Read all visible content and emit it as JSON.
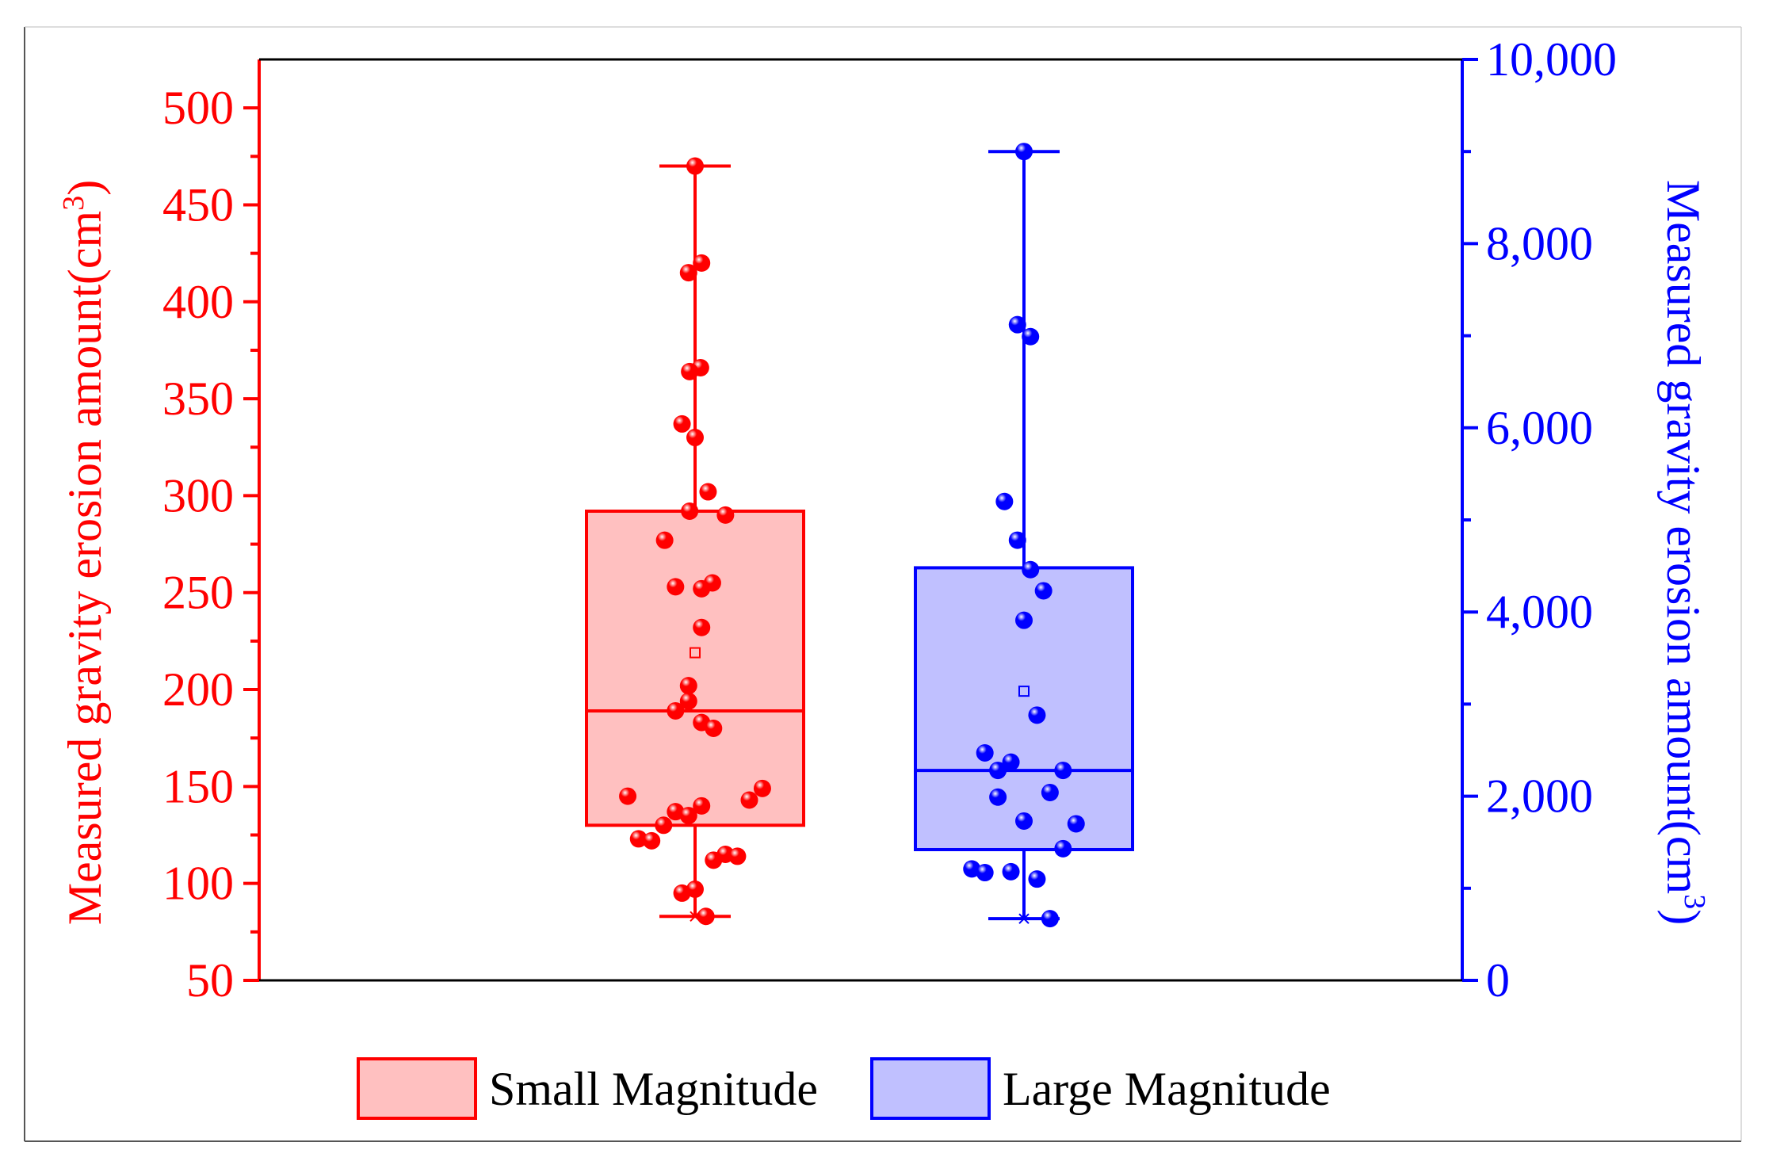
{
  "chart_data": {
    "type": "box",
    "left_axis": {
      "label_main": "Measured gravity erosion amount(cm",
      "label_sup": "3",
      "label_end": ")",
      "range": [
        50,
        525
      ],
      "ticks": [
        50,
        100,
        150,
        200,
        250,
        300,
        350,
        400,
        450,
        500
      ],
      "tick_labels": [
        "50",
        "100",
        "150",
        "200",
        "250",
        "300",
        "350",
        "400",
        "450",
        "500"
      ],
      "color": "#ff0000"
    },
    "right_axis": {
      "label_main": "Measured gravity erosion amount(cm",
      "label_sup": "3",
      "label_end": ")",
      "range": [
        0,
        10000
      ],
      "ticks": [
        0,
        2000,
        4000,
        6000,
        8000,
        10000
      ],
      "tick_labels": [
        "0",
        "2,000",
        "4,000",
        "6,000",
        "8,000",
        "10,000"
      ],
      "color": "#0000ff"
    },
    "series": [
      {
        "name": "Small Magnitude",
        "axis": "left",
        "color": "#ff0000",
        "fill": "#ffc0c0",
        "whisker_low": 83,
        "q1": 130,
        "median": 189,
        "q3": 292,
        "whisker_high": 470,
        "mean": 219,
        "points": [
          {
            "v": 470,
            "j": 0
          },
          {
            "v": 420,
            "j": 0.06
          },
          {
            "v": 415,
            "j": -0.06
          },
          {
            "v": 366,
            "j": 0.05
          },
          {
            "v": 364,
            "j": -0.05
          },
          {
            "v": 337,
            "j": -0.12
          },
          {
            "v": 330,
            "j": 0
          },
          {
            "v": 302,
            "j": 0.12
          },
          {
            "v": 292,
            "j": -0.05
          },
          {
            "v": 290,
            "j": 0.28
          },
          {
            "v": 277,
            "j": -0.28
          },
          {
            "v": 255,
            "j": 0.16
          },
          {
            "v": 253,
            "j": -0.18
          },
          {
            "v": 252,
            "j": 0.06
          },
          {
            "v": 232,
            "j": 0.06
          },
          {
            "v": 202,
            "j": -0.06
          },
          {
            "v": 194,
            "j": -0.06
          },
          {
            "v": 189,
            "j": -0.18
          },
          {
            "v": 183,
            "j": 0.06
          },
          {
            "v": 180,
            "j": 0.17
          },
          {
            "v": 149,
            "j": 0.62
          },
          {
            "v": 145,
            "j": -0.62
          },
          {
            "v": 143,
            "j": 0.5
          },
          {
            "v": 140,
            "j": 0.06
          },
          {
            "v": 137,
            "j": -0.18
          },
          {
            "v": 135,
            "j": -0.06
          },
          {
            "v": 130,
            "j": -0.29
          },
          {
            "v": 123,
            "j": -0.52
          },
          {
            "v": 122,
            "j": -0.4
          },
          {
            "v": 115,
            "j": 0.28
          },
          {
            "v": 114,
            "j": 0.39
          },
          {
            "v": 112,
            "j": 0.17
          },
          {
            "v": 97,
            "j": 0
          },
          {
            "v": 95,
            "j": -0.12
          },
          {
            "v": 83,
            "j": 0.1
          }
        ]
      },
      {
        "name": "Large Magnitude",
        "axis": "right",
        "color": "#0000ff",
        "fill": "#c0c0ff",
        "whisker_low": 670,
        "q1": 1420,
        "median": 2280,
        "q3": 4480,
        "whisker_high": 9000,
        "mean": 3140,
        "points": [
          {
            "v": 9000,
            "j": 0
          },
          {
            "v": 7120,
            "j": -0.06
          },
          {
            "v": 6990,
            "j": 0.06
          },
          {
            "v": 5200,
            "j": -0.18
          },
          {
            "v": 4780,
            "j": -0.06
          },
          {
            "v": 4460,
            "j": 0.06
          },
          {
            "v": 4230,
            "j": 0.18
          },
          {
            "v": 3910,
            "j": 0
          },
          {
            "v": 2880,
            "j": 0.12
          },
          {
            "v": 2470,
            "j": -0.36
          },
          {
            "v": 2370,
            "j": -0.12
          },
          {
            "v": 2280,
            "j": -0.24
          },
          {
            "v": 2280,
            "j": 0.36
          },
          {
            "v": 2040,
            "j": 0.24
          },
          {
            "v": 1990,
            "j": -0.24
          },
          {
            "v": 1730,
            "j": 0
          },
          {
            "v": 1700,
            "j": 0.48
          },
          {
            "v": 1430,
            "j": 0.36
          },
          {
            "v": 1210,
            "j": -0.48
          },
          {
            "v": 1170,
            "j": -0.36
          },
          {
            "v": 1180,
            "j": -0.12
          },
          {
            "v": 1100,
            "j": 0.12
          },
          {
            "v": 670,
            "j": 0.24
          }
        ]
      }
    ],
    "legend": {
      "position": "bottom-center",
      "entries": [
        "Small Magnitude",
        "Large Magnitude"
      ]
    }
  }
}
